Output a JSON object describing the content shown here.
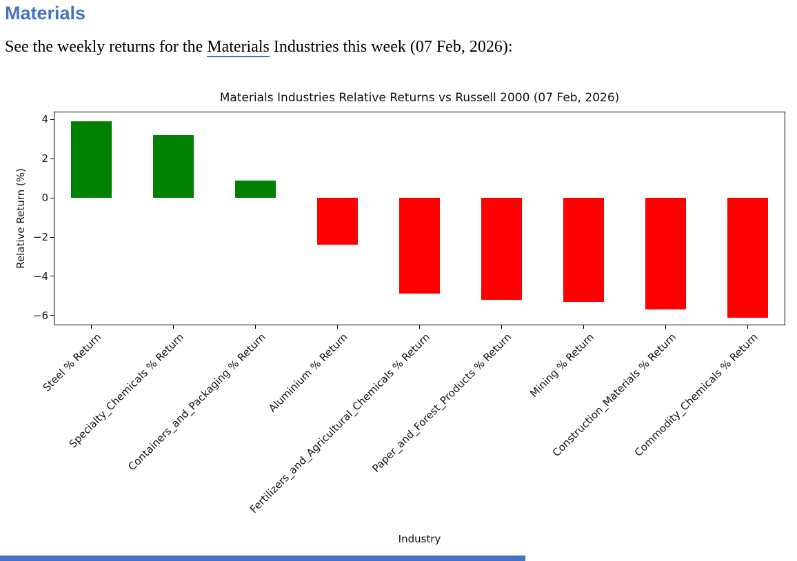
{
  "doc": {
    "heading": "Materials",
    "intro": {
      "prefix": "See the weekly returns for the ",
      "link_text": "Materials",
      "suffix": " Industries this week (07 Feb, 2026):"
    },
    "accent_color": "#4472C4"
  },
  "chart_data": {
    "type": "bar",
    "title": "Materials Industries Relative Returns vs Russell 2000 (07 Feb, 2026)",
    "xlabel": "Industry",
    "ylabel": "Relative Return (%)",
    "categories": [
      "Steel % Return",
      "Specialty_Chemicals % Return",
      "Containers_and_Packaging % Return",
      "Aluminium % Return",
      "Fertilizers_and_Agricultural_Chemicals % Return",
      "Paper_and_Forest_Products % Return",
      "Mining % Return",
      "Construction_Materials % Return",
      "Commodity_Chemicals % Return"
    ],
    "values": [
      3.9,
      3.2,
      0.9,
      -2.4,
      -4.9,
      -5.2,
      -5.3,
      -5.7,
      -6.1
    ],
    "yticks": [
      4,
      2,
      0,
      -2,
      -4,
      -6
    ],
    "ylim": [
      -6.5,
      4.4
    ],
    "positive_color": "#008000",
    "negative_color": "#ff0000",
    "grid": false,
    "legend": null,
    "color_rule": "green if value >= 0 else red",
    "tick_label_rotation_deg": 45
  },
  "footer": {
    "scrollbar_color": "#4472C4"
  }
}
